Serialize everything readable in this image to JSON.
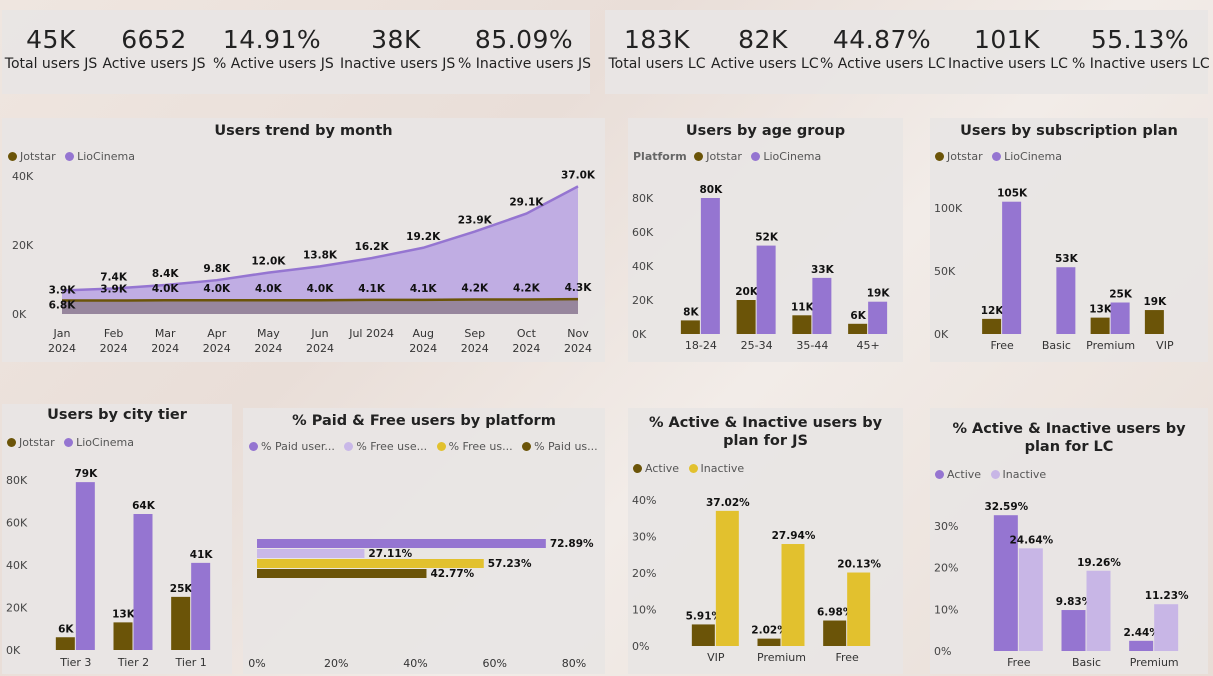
{
  "colors": {
    "jotstar": "#6b5408",
    "liocinema": "#9575d1",
    "active_lc": "#9575d1",
    "inactive_lc": "#c8b6e6",
    "paid_lc": "#9575d1",
    "free_lc": "#c9b8e8",
    "free_js": "#e2c12e",
    "paid_js": "#6b5408",
    "active_js": "#6b5408",
    "inactive_js": "#e2c12e"
  },
  "kpis_js": [
    {
      "value": "45K",
      "label": "Total users JS"
    },
    {
      "value": "6652",
      "label": "Active users JS"
    },
    {
      "value": "14.91%",
      "label": "% Active users JS"
    },
    {
      "value": "38K",
      "label": "Inactive users JS"
    },
    {
      "value": "85.09%",
      "label": "% Inactive users JS"
    }
  ],
  "kpis_lc": [
    {
      "value": "183K",
      "label": "Total users LC"
    },
    {
      "value": "82K",
      "label": "Active users LC"
    },
    {
      "value": "44.87%",
      "label": "% Active users LC"
    },
    {
      "value": "101K",
      "label": "Inactive users LC"
    },
    {
      "value": "55.13%",
      "label": "% Inactive users LC"
    }
  ],
  "chart_data": [
    {
      "id": "trend",
      "type": "area",
      "title": "Users trend by month",
      "legend": [
        "Jotstar",
        "LioCinema"
      ],
      "categories": [
        [
          "Jan",
          "2024"
        ],
        [
          "Feb",
          "2024"
        ],
        [
          "Mar",
          "2024"
        ],
        [
          "Apr",
          "2024"
        ],
        [
          "May",
          "2024"
        ],
        [
          "Jun",
          "2024"
        ],
        [
          "Jul 2024"
        ],
        [
          "Aug",
          "2024"
        ],
        [
          "Sep",
          "2024"
        ],
        [
          "Oct",
          "2024"
        ],
        [
          "Nov",
          "2024"
        ]
      ],
      "yticks": [
        "40K",
        "20K",
        "0K"
      ],
      "ylim": [
        0,
        40000
      ],
      "series": [
        {
          "name": "Jotstar",
          "values": [
            3900,
            3900,
            4000,
            4000,
            4000,
            4000,
            4100,
            4100,
            4200,
            4200,
            4300
          ],
          "labels": [
            "3.9K",
            "3.9K",
            "4.0K",
            "4.0K",
            "4.0K",
            "4.0K",
            "4.1K",
            "4.1K",
            "4.2K",
            "4.2K",
            "4.3K"
          ]
        },
        {
          "name": "LioCinema",
          "values": [
            6800,
            7400,
            8400,
            9800,
            12000,
            13800,
            16200,
            19200,
            23900,
            29100,
            37000
          ],
          "labels": [
            "6.8K",
            "7.4K",
            "8.4K",
            "9.8K",
            "12.0K",
            "13.8K",
            "16.2K",
            "19.2K",
            "23.9K",
            "29.1K",
            "37.0K"
          ]
        }
      ]
    },
    {
      "id": "age",
      "type": "bar",
      "title": "Users by age group",
      "legend_prefix": "Platform",
      "legend": [
        "Jotstar",
        "LioCinema"
      ],
      "categories": [
        "18-24",
        "25-34",
        "35-44",
        "45+"
      ],
      "yticks": [
        "80K",
        "60K",
        "40K",
        "20K",
        "0K"
      ],
      "ylim": [
        0,
        80000
      ],
      "series": [
        {
          "name": "Jotstar",
          "values": [
            8000,
            20000,
            11000,
            6000
          ],
          "labels": [
            "8K",
            "20K",
            "11K",
            "6K"
          ]
        },
        {
          "name": "LioCinema",
          "values": [
            80000,
            52000,
            33000,
            19000
          ],
          "labels": [
            "80K",
            "52K",
            "33K",
            "19K"
          ]
        }
      ]
    },
    {
      "id": "sub",
      "type": "bar",
      "title": "Users by subscription plan",
      "legend": [
        "Jotstar",
        "LioCinema"
      ],
      "categories": [
        "Free",
        "Basic",
        "Premium",
        "VIP"
      ],
      "yticks": [
        "100K",
        "50K",
        "0K"
      ],
      "ylim": [
        0,
        100000
      ],
      "series": [
        {
          "name": "Jotstar",
          "values": [
            12000,
            null,
            13000,
            19000
          ],
          "labels": [
            "12K",
            "",
            "13K",
            "19K"
          ]
        },
        {
          "name": "LioCinema",
          "values": [
            105000,
            53000,
            25000,
            null
          ],
          "labels": [
            "105K",
            "53K",
            "25K",
            ""
          ]
        }
      ]
    },
    {
      "id": "city",
      "type": "bar",
      "title": "Users by city tier",
      "legend": [
        "Jotstar",
        "LioCinema"
      ],
      "categories": [
        "Tier 3",
        "Tier 2",
        "Tier 1"
      ],
      "yticks": [
        "80K",
        "60K",
        "40K",
        "20K",
        "0K"
      ],
      "ylim": [
        0,
        80000
      ],
      "series": [
        {
          "name": "Jotstar",
          "values": [
            6000,
            13000,
            25000
          ],
          "labels": [
            "6K",
            "13K",
            "25K"
          ]
        },
        {
          "name": "LioCinema",
          "values": [
            79000,
            64000,
            41000
          ],
          "labels": [
            "79K",
            "64K",
            "41K"
          ]
        }
      ]
    },
    {
      "id": "paidfree",
      "type": "bar",
      "title": "% Paid & Free users by platform",
      "legend": [
        "% Paid user...",
        "% Free use...",
        "% Free us...",
        "% Paid us..."
      ],
      "xticks": [
        "0%",
        "20%",
        "40%",
        "60%",
        "80%"
      ],
      "xlim": [
        0,
        80
      ],
      "series": [
        {
          "name": "% Paid user...",
          "values": [
            72.89
          ],
          "labels": [
            "72.89%"
          ]
        },
        {
          "name": "% Free use...",
          "values": [
            27.11
          ],
          "labels": [
            "27.11%"
          ]
        },
        {
          "name": "% Free us...",
          "values": [
            57.23
          ],
          "labels": [
            "57.23%"
          ]
        },
        {
          "name": "% Paid us...",
          "values": [
            42.77
          ],
          "labels": [
            "42.77%"
          ]
        }
      ]
    },
    {
      "id": "planjs",
      "type": "bar",
      "title": "% Active & Inactive users by plan for JS",
      "legend": [
        "Active",
        "Inactive"
      ],
      "categories": [
        "VIP",
        "Premium",
        "Free"
      ],
      "yticks": [
        "40%",
        "30%",
        "20%",
        "10%",
        "0%"
      ],
      "ylim": [
        0,
        40
      ],
      "series": [
        {
          "name": "Active",
          "values": [
            5.91,
            2.02,
            6.98
          ],
          "labels": [
            "5.91%",
            "2.02%",
            "6.98%"
          ]
        },
        {
          "name": "Inactive",
          "values": [
            37.02,
            27.94,
            20.13
          ],
          "labels": [
            "37.02%",
            "27.94%",
            "20.13%"
          ]
        }
      ]
    },
    {
      "id": "planlc",
      "type": "bar",
      "title": "% Active & Inactive users by plan for LC",
      "legend": [
        "Active",
        "Inactive"
      ],
      "categories": [
        "Free",
        "Basic",
        "Premium"
      ],
      "yticks": [
        "30%",
        "20%",
        "10%",
        "0%"
      ],
      "ylim": [
        0,
        30
      ],
      "series": [
        {
          "name": "Active",
          "values": [
            32.59,
            9.83,
            2.44
          ],
          "labels": [
            "32.59%",
            "9.83%",
            "2.44%"
          ]
        },
        {
          "name": "Inactive",
          "values": [
            24.64,
            19.26,
            11.23
          ],
          "labels": [
            "24.64%",
            "19.26%",
            "11.23%"
          ]
        }
      ]
    }
  ]
}
